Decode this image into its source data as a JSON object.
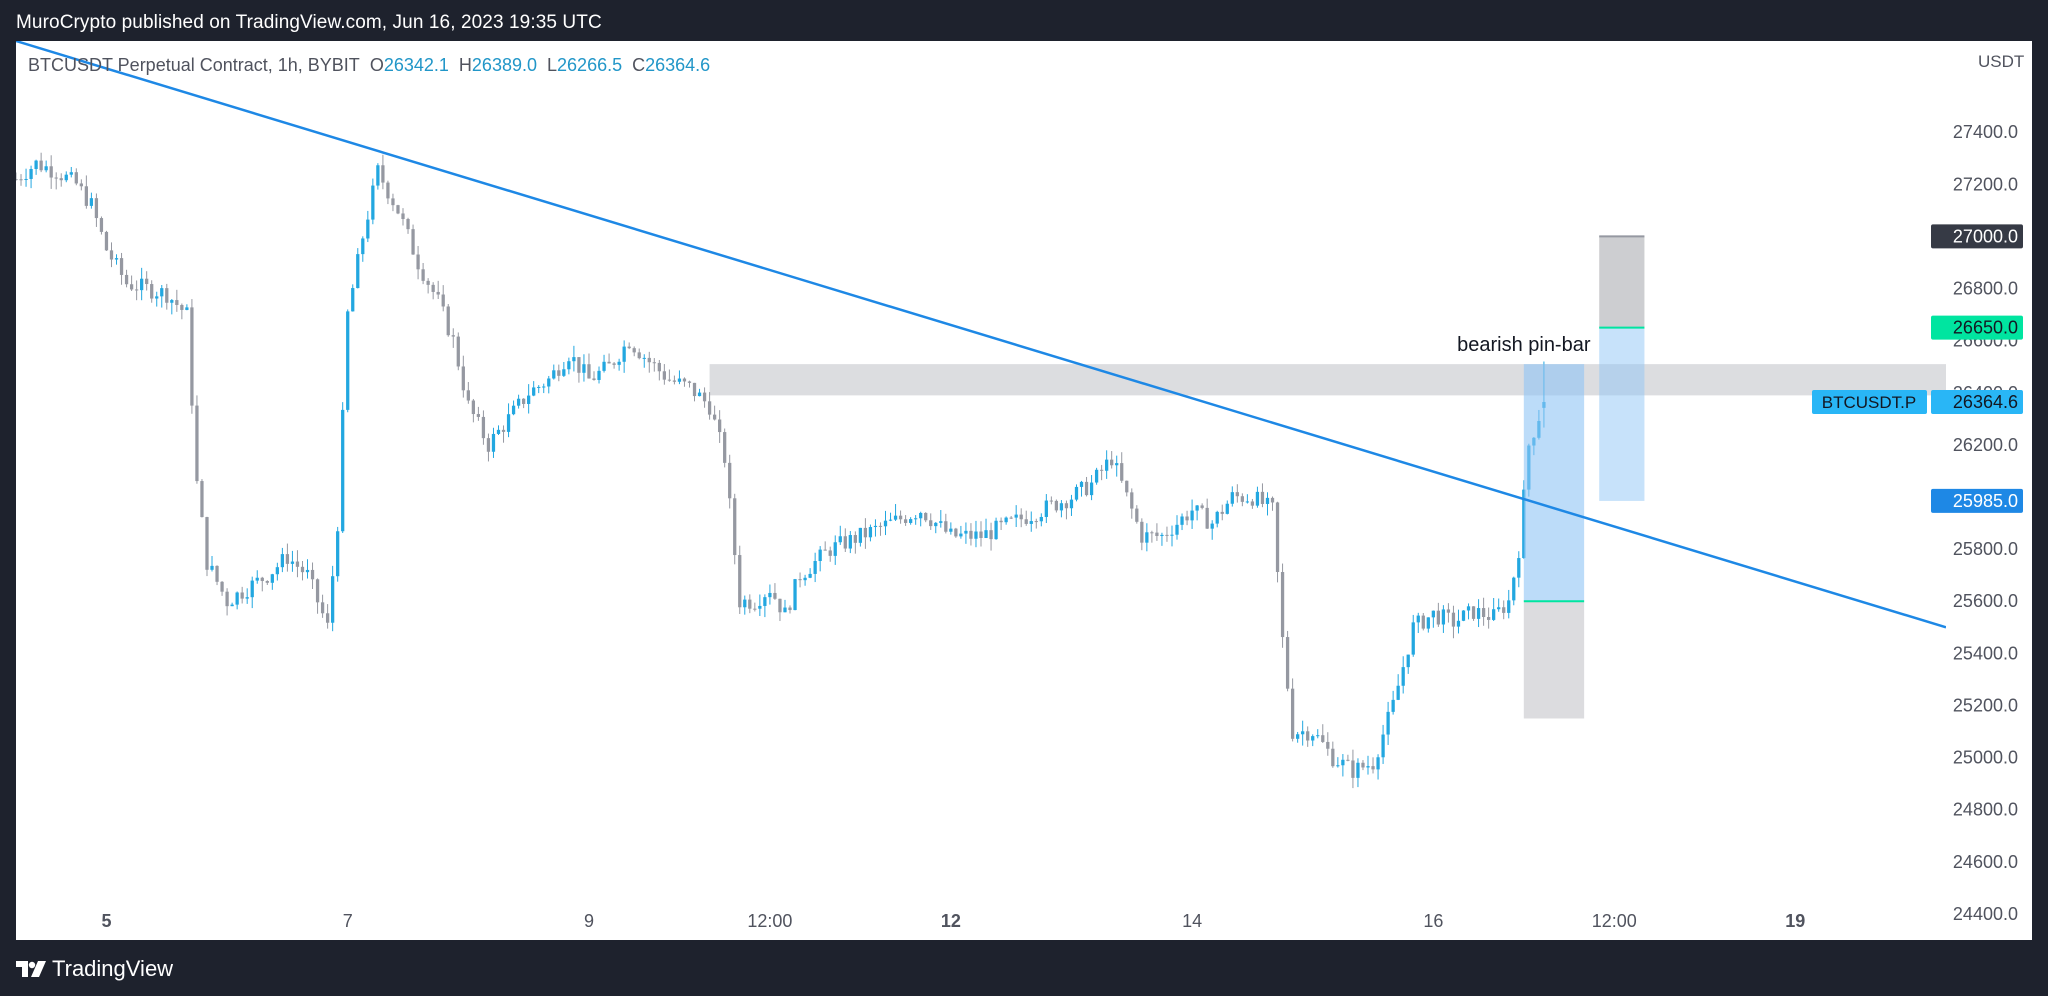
{
  "header": {
    "published": "MuroCrypto published on TradingView.com, Jun 16, 2023 19:35 UTC"
  },
  "legend": {
    "symbol": "BTCUSDT Perpetual Contract, 1h, BYBIT",
    "o_label": "O",
    "o_value": "26342.1",
    "h_label": "H",
    "h_value": "26389.0",
    "l_label": "L",
    "l_value": "26266.5",
    "c_label": "C",
    "c_value": "26364.6"
  },
  "footer": {
    "brand": "TradingView",
    "logo_icon": "tradingview-logo-icon"
  },
  "colors": {
    "up": "#22a7e0",
    "down": "#9598a1",
    "trendline": "#1e88e5",
    "zone": "#d6d7db",
    "target": "#00e5a0",
    "entry": "#1e88e5",
    "current": "#29b6f6",
    "stop_label": "#363a45"
  },
  "chart_data": {
    "type": "candlestick",
    "currency_label": "USDT",
    "symbol_tag": "BTCUSDT.P",
    "ylim": [
      24300,
      27750
    ],
    "y_ticks": [
      24400,
      24600,
      24800,
      25000,
      25200,
      25400,
      25600,
      25800,
      26000,
      26200,
      26400,
      26600,
      26800,
      27000,
      27200,
      27400
    ],
    "y_tick_labels": [
      "24400.0",
      "24600.0",
      "24800.0",
      "25000.0",
      "25200.0",
      "25400.0",
      "25600.0",
      "25800.0",
      "26000.0",
      "26200.0",
      "26400.0",
      "26600.0",
      "26800.0",
      "27000.0",
      "27200.0",
      "27400.0"
    ],
    "x_start": "2023-06-04T06:00",
    "x_end": "2023-06-20T06:00",
    "x_ticks": [
      {
        "label": "5",
        "time": "2023-06-05T00:00",
        "bold": true
      },
      {
        "label": "7",
        "time": "2023-06-07T00:00",
        "bold": false
      },
      {
        "label": "9",
        "time": "2023-06-09T00:00",
        "bold": false
      },
      {
        "label": "12:00",
        "time": "2023-06-10T12:00",
        "bold": false
      },
      {
        "label": "12",
        "time": "2023-06-12T00:00",
        "bold": true
      },
      {
        "label": "14",
        "time": "2023-06-14T00:00",
        "bold": false
      },
      {
        "label": "16",
        "time": "2023-06-16T00:00",
        "bold": false
      },
      {
        "label": "12:00",
        "time": "2023-06-17T12:00",
        "bold": false
      },
      {
        "label": "19",
        "time": "2023-06-19T00:00",
        "bold": true
      }
    ],
    "price_path": [
      [
        "2023-06-04T06:00",
        27220
      ],
      [
        "2023-06-04T10:00",
        27280
      ],
      [
        "2023-06-04T14:00",
        27250
      ],
      [
        "2023-06-04T18:00",
        27200
      ],
      [
        "2023-06-04T21:00",
        27120
      ],
      [
        "2023-06-05T00:00",
        26950
      ],
      [
        "2023-06-05T04:00",
        26820
      ],
      [
        "2023-06-05T08:00",
        26800
      ],
      [
        "2023-06-05T12:00",
        26780
      ],
      [
        "2023-06-05T16:00",
        26700
      ],
      [
        "2023-06-05T18:00",
        26050
      ],
      [
        "2023-06-05T20:00",
        25750
      ],
      [
        "2023-06-06T00:00",
        25600
      ],
      [
        "2023-06-06T04:00",
        25650
      ],
      [
        "2023-06-06T08:00",
        25700
      ],
      [
        "2023-06-06T12:00",
        25770
      ],
      [
        "2023-06-06T16:00",
        25700
      ],
      [
        "2023-06-06T20:00",
        25500
      ],
      [
        "2023-06-06T22:00",
        25900
      ],
      [
        "2023-06-07T00:00",
        26700
      ],
      [
        "2023-06-07T03:00",
        27000
      ],
      [
        "2023-06-07T06:00",
        27250
      ],
      [
        "2023-06-07T10:00",
        27100
      ],
      [
        "2023-06-07T14:00",
        26900
      ],
      [
        "2023-06-07T18:00",
        26750
      ],
      [
        "2023-06-07T21:00",
        26600
      ],
      [
        "2023-06-08T00:00",
        26350
      ],
      [
        "2023-06-08T04:00",
        26200
      ],
      [
        "2023-06-08T08:00",
        26300
      ],
      [
        "2023-06-08T12:00",
        26400
      ],
      [
        "2023-06-08T16:00",
        26450
      ],
      [
        "2023-06-08T20:00",
        26550
      ],
      [
        "2023-06-09T00:00",
        26450
      ],
      [
        "2023-06-09T04:00",
        26500
      ],
      [
        "2023-06-09T08:00",
        26600
      ],
      [
        "2023-06-09T12:00",
        26520
      ],
      [
        "2023-06-09T16:00",
        26450
      ],
      [
        "2023-06-09T20:00",
        26420
      ],
      [
        "2023-06-10T00:00",
        26350
      ],
      [
        "2023-06-10T03:00",
        26150
      ],
      [
        "2023-06-10T06:00",
        25600
      ],
      [
        "2023-06-10T09:00",
        25600
      ],
      [
        "2023-06-10T12:00",
        25650
      ],
      [
        "2023-06-10T15:00",
        25550
      ],
      [
        "2023-06-10T18:00",
        25700
      ],
      [
        "2023-06-11T00:00",
        25800
      ],
      [
        "2023-06-11T06:00",
        25850
      ],
      [
        "2023-06-11T12:00",
        25900
      ],
      [
        "2023-06-11T18:00",
        25950
      ],
      [
        "2023-06-12T00:00",
        25850
      ],
      [
        "2023-06-12T06:00",
        25850
      ],
      [
        "2023-06-12T12:00",
        25900
      ],
      [
        "2023-06-12T18:00",
        25950
      ],
      [
        "2023-06-13T00:00",
        26000
      ],
      [
        "2023-06-13T04:00",
        26050
      ],
      [
        "2023-06-13T08:00",
        26150
      ],
      [
        "2023-06-13T10:00",
        26050
      ],
      [
        "2023-06-13T14:00",
        25850
      ],
      [
        "2023-06-13T18:00",
        25850
      ],
      [
        "2023-06-14T00:00",
        25950
      ],
      [
        "2023-06-14T04:00",
        25900
      ],
      [
        "2023-06-14T08:00",
        26000
      ],
      [
        "2023-06-14T12:00",
        26000
      ],
      [
        "2023-06-14T16:00",
        25950
      ],
      [
        "2023-06-14T18:00",
        25450
      ],
      [
        "2023-06-14T20:00",
        25100
      ],
      [
        "2023-06-15T00:00",
        25100
      ],
      [
        "2023-06-15T04:00",
        25000
      ],
      [
        "2023-06-15T08:00",
        24950
      ],
      [
        "2023-06-15T12:00",
        24980
      ],
      [
        "2023-06-15T16:00",
        25200
      ],
      [
        "2023-06-15T20:00",
        25500
      ],
      [
        "2023-06-16T00:00",
        25550
      ],
      [
        "2023-06-16T04:00",
        25520
      ],
      [
        "2023-06-16T08:00",
        25560
      ],
      [
        "2023-06-16T12:00",
        25540
      ],
      [
        "2023-06-16T15:00",
        25600
      ],
      [
        "2023-06-16T17:00",
        25800
      ],
      [
        "2023-06-16T19:00",
        26200
      ],
      [
        "2023-06-16T22:00",
        26364.6
      ]
    ],
    "trendline": {
      "start": {
        "time": "2023-06-04T06:00",
        "price": 27750
      },
      "end": {
        "time": "2023-06-20T06:00",
        "price": 25500
      }
    },
    "resistance_zone": {
      "from": "2023-06-10T00:00",
      "to": "2023-06-20T06:00",
      "low": 26390,
      "high": 26510
    },
    "annotation": {
      "text": "bearish pin-bar",
      "time": "2023-06-16T18:00",
      "price": 26560
    },
    "short_position": {
      "from": "2023-06-17T09:00",
      "to": "2023-06-17T18:00",
      "stop": 27000,
      "entry": 25985,
      "target": 26650
    },
    "long_position": {
      "from": "2023-06-16T18:00",
      "to": "2023-06-17T06:00",
      "entry": 26510,
      "target": 25600,
      "stop": 25150
    },
    "price_labels": [
      {
        "value": "27000.0",
        "price": 27000,
        "kind": "stop"
      },
      {
        "value": "26650.0",
        "price": 26650,
        "kind": "target"
      },
      {
        "value": "26364.6",
        "price": 26364.6,
        "kind": "current"
      },
      {
        "value": "25985.0",
        "price": 25985,
        "kind": "entry"
      }
    ]
  }
}
